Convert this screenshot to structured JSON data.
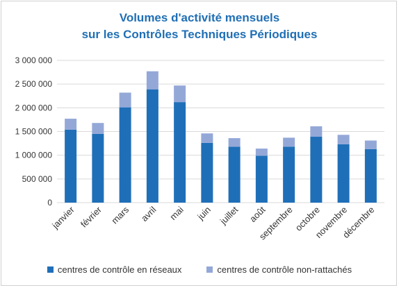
{
  "chart_data": {
    "type": "bar",
    "stacked": true,
    "title_lines": [
      "Volumes d'activité mensuels",
      "sur les Contrôles Techniques Périodiques"
    ],
    "categories": [
      "janvier",
      "février",
      "mars",
      "avril",
      "mai",
      "juin",
      "juillet",
      "août",
      "septembre",
      "octobre",
      "novembre",
      "décembre"
    ],
    "series": [
      {
        "name": "centres de contrôle en réseaux",
        "color": "#1f6fb8",
        "values": [
          1540000,
          1450000,
          2010000,
          2390000,
          2120000,
          1260000,
          1180000,
          990000,
          1180000,
          1390000,
          1230000,
          1130000
        ]
      },
      {
        "name": "centres de contrôle non-rattachés",
        "color": "#94a8d8",
        "values": [
          230000,
          230000,
          310000,
          380000,
          350000,
          200000,
          180000,
          150000,
          190000,
          220000,
          200000,
          180000
        ]
      }
    ],
    "y_ticks": [
      "0",
      "500 000",
      "1 000 000",
      "1 500 000",
      "2 000 000",
      "2 500 000",
      "3 000 000"
    ],
    "ylim": [
      0,
      3000000
    ],
    "y_step": 500000,
    "grid": true,
    "legend_position": "bottom"
  }
}
